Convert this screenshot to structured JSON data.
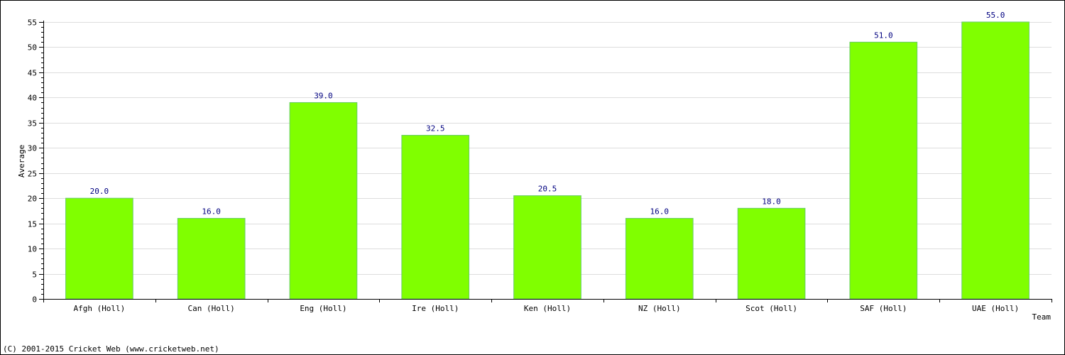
{
  "chart_data": {
    "type": "bar",
    "categories": [
      "Afgh (Holl)",
      "Can (Holl)",
      "Eng (Holl)",
      "Ire (Holl)",
      "Ken (Holl)",
      "NZ (Holl)",
      "Scot (Holl)",
      "SAF (Holl)",
      "UAE (Holl)"
    ],
    "values": [
      20.0,
      16.0,
      39.0,
      32.5,
      20.5,
      16.0,
      18.0,
      51.0,
      55.0
    ],
    "data_labels": [
      "20.0",
      "16.0",
      "39.0",
      "32.5",
      "20.5",
      "16.0",
      "18.0",
      "51.0",
      "55.0"
    ],
    "xlabel": "Team",
    "ylabel": "Average",
    "ylim": [
      0,
      55
    ],
    "yticks": [
      0,
      5,
      10,
      15,
      20,
      25,
      30,
      35,
      40,
      45,
      50,
      55
    ],
    "grid": true,
    "legend": "none",
    "colors": {
      "bar": "#80ff00",
      "bar_edge": "#66cc66",
      "grid": "#dddddd",
      "axis": "#000000",
      "value_label": "#000080"
    }
  },
  "footer": {
    "copyright": "(C) 2001-2015 Cricket Web (www.cricketweb.net)"
  }
}
